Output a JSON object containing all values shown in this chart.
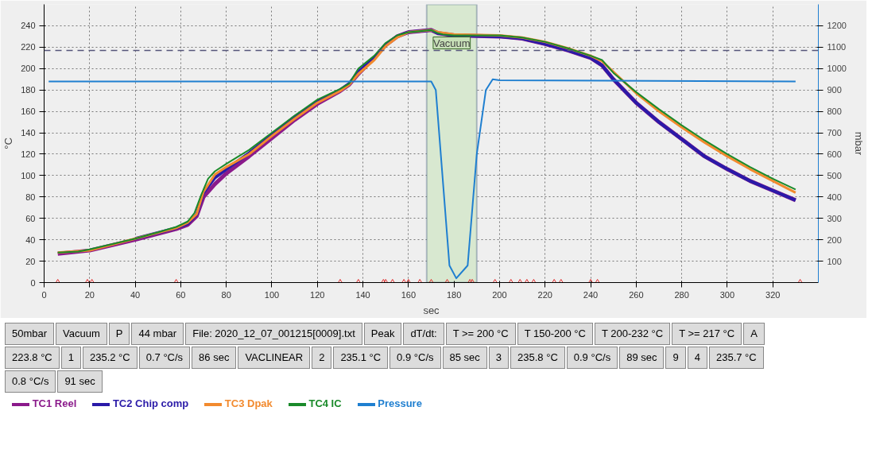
{
  "chart_data": {
    "type": "line",
    "xlabel": "sec",
    "ylabel": "°C",
    "y2label": "mbar",
    "xlim": [
      0,
      340
    ],
    "xticks": [
      0,
      20,
      40,
      60,
      80,
      100,
      120,
      140,
      160,
      180,
      200,
      220,
      240,
      260,
      280,
      300,
      320
    ],
    "ylim": [
      0,
      260
    ],
    "yticks": [
      0,
      20,
      40,
      60,
      80,
      100,
      120,
      140,
      160,
      180,
      200,
      220,
      240
    ],
    "y2lim": [
      0,
      1300
    ],
    "y2ticks": [
      100,
      200,
      300,
      400,
      500,
      600,
      700,
      800,
      900,
      1000,
      1100,
      1200
    ],
    "grid": true,
    "legend": "bottom",
    "line_style": "solid",
    "series": [
      {
        "name": "TC1 Reel",
        "color": "#8b1a8b",
        "x": [
          6,
          20,
          40,
          58,
          63,
          67,
          70,
          75,
          80,
          90,
          100,
          110,
          120,
          130,
          134,
          138,
          145,
          150,
          155,
          160,
          170,
          173,
          180,
          200,
          210,
          220,
          230,
          240,
          245,
          250,
          260,
          270,
          280,
          290,
          300,
          310,
          320,
          330
        ],
        "values": [
          27,
          30,
          40,
          50,
          54,
          62,
          80,
          92,
          102,
          118,
          135,
          152,
          167,
          179,
          185,
          195,
          210,
          222,
          230,
          234,
          236,
          233,
          231,
          230,
          228,
          223,
          217,
          210,
          203,
          190,
          168,
          150,
          134,
          118,
          106,
          95,
          86,
          77
        ]
      },
      {
        "name": "TC2 Chip comp",
        "color": "#2a1aa8",
        "x": [
          40,
          58,
          63,
          67,
          70,
          75,
          80,
          90,
          100,
          110,
          120,
          130,
          134,
          138,
          145,
          150,
          155,
          160,
          170,
          173,
          180,
          200,
          210,
          220,
          230,
          240,
          245,
          250,
          260,
          270,
          280,
          290,
          300,
          310,
          320,
          330
        ],
        "values": [
          41,
          51,
          55,
          64,
          84,
          98,
          106,
          121,
          138,
          155,
          169,
          180,
          186,
          197,
          210,
          222,
          230,
          234,
          236,
          233,
          231,
          230,
          228,
          223,
          217,
          210,
          203,
          190,
          168,
          150,
          134,
          118,
          106,
          95,
          86,
          77
        ]
      },
      {
        "name": "TC3 Dpak",
        "color": "#f28a2e",
        "x": [
          6,
          20,
          40,
          58,
          63,
          67,
          70,
          75,
          80,
          90,
          100,
          110,
          120,
          130,
          134,
          138,
          145,
          150,
          155,
          160,
          170,
          173,
          180,
          200,
          210,
          220,
          230,
          240,
          245,
          250,
          260,
          270,
          280,
          290,
          300,
          310,
          320,
          330
        ],
        "values": [
          28,
          30,
          41,
          51,
          56,
          64,
          85,
          101,
          108,
          120,
          137,
          153,
          168,
          179,
          185,
          195,
          208,
          221,
          229,
          234,
          236,
          234,
          232,
          231,
          229,
          225,
          219,
          212,
          207,
          197,
          177,
          160,
          145,
          131,
          118,
          106,
          95,
          84
        ]
      },
      {
        "name": "TC4 IC",
        "color": "#1a8a2a",
        "x": [
          6,
          15,
          20,
          30,
          40,
          50,
          58,
          63,
          66,
          69,
          72,
          75,
          80,
          90,
          100,
          110,
          120,
          130,
          134,
          138,
          145,
          150,
          155,
          160,
          165,
          170,
          173,
          175,
          180,
          200,
          210,
          220,
          230,
          240,
          245,
          250,
          260,
          270,
          280,
          290,
          300,
          310,
          320,
          330
        ],
        "values": [
          28,
          29,
          31,
          36,
          41,
          47,
          52,
          57,
          65,
          82,
          97,
          104,
          111,
          124,
          140,
          156,
          171,
          181,
          186,
          200,
          212,
          224,
          231,
          234,
          235,
          236,
          233,
          232,
          231,
          231,
          229,
          225,
          219,
          212,
          208,
          196,
          178,
          162,
          147,
          133,
          120,
          108,
          97,
          87
        ]
      },
      {
        "name": "Pressure",
        "color": "#1f7fd0",
        "axis": "y2",
        "x": [
          2,
          170,
          172,
          178,
          181,
          186,
          190,
          194,
          197,
          200,
          330
        ],
        "values": [
          940,
          940,
          900,
          80,
          20,
          80,
          600,
          900,
          950,
          945,
          940
        ]
      },
      {
        "type": "scatter",
        "marker": "triangle",
        "color": "#e03030",
        "x": [
          6,
          19,
          21,
          58,
          130,
          138,
          149,
          150,
          153,
          158,
          160,
          165,
          170,
          177,
          187,
          188,
          198,
          205,
          209,
          212,
          215,
          224,
          227,
          240,
          243,
          332
        ],
        "values": [
          0,
          0,
          0,
          0,
          0,
          0,
          0,
          0,
          0,
          0,
          0,
          0,
          0,
          0,
          0,
          0,
          0,
          0,
          0,
          0,
          0,
          0,
          0,
          0,
          0,
          0
        ]
      }
    ],
    "ref_lines": [
      {
        "axis": "y",
        "value": 217,
        "color": "#55557a",
        "line_style": "dashed"
      }
    ],
    "bands": [
      {
        "axis": "x",
        "from": 168,
        "to": 190,
        "label": "Vacuum",
        "color": "#d8e8d0"
      }
    ],
    "annotations": [
      "50mbar",
      "Vacuum",
      "P",
      "44 mbar",
      "File: 2020_12_07_001215[0009].txt",
      "Peak",
      "dT/dt:",
      "T >= 200 °C",
      "T 150-200 °C",
      "T 200-232 °C",
      "T >= 217 °C",
      "A",
      "223.8 °C",
      "1",
      "235.2 °C",
      "0.7 °C/s",
      "86 sec",
      "VACLINEAR",
      "2",
      "235.1 °C",
      "0.9 °C/s",
      "85 sec",
      "3",
      "235.8 °C",
      "0.9 °C/s",
      "89 sec",
      "9",
      "4",
      "235.7 °C",
      "0.8 °C/s",
      "91 sec"
    ]
  }
}
